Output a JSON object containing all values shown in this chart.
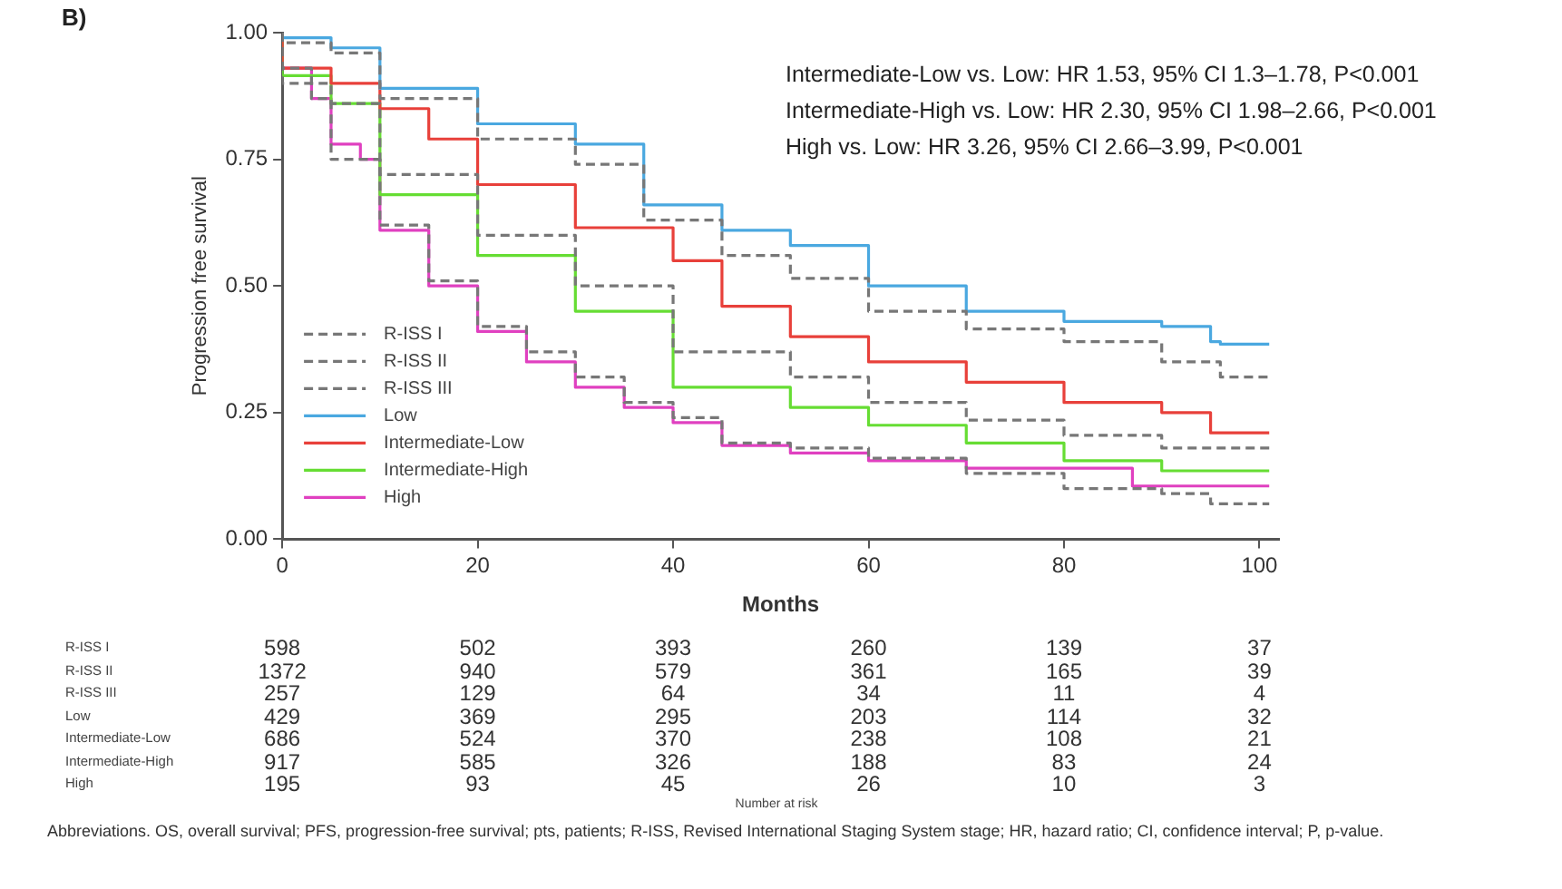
{
  "chart_data": {
    "type": "step",
    "ylabel": "Progression free survival",
    "xlabel": "Months",
    "xlim": [
      0,
      102
    ],
    "ylim": [
      0,
      1
    ],
    "xticks": [
      0,
      20,
      40,
      60,
      80,
      100
    ],
    "yticks": [
      {
        "value": 0,
        "label": "0.00"
      },
      {
        "value": 0.25,
        "label": "0.25"
      },
      {
        "value": 0.5,
        "label": "0.50"
      },
      {
        "value": 0.75,
        "label": "0.75"
      },
      {
        "value": 1,
        "label": "1.00"
      }
    ],
    "grid": false,
    "legend": "bottom left",
    "marker": "none",
    "series": [
      {
        "name": "R-ISS I",
        "color": "#777777",
        "line_style": "dashed",
        "x": [
          0,
          5,
          10,
          20,
          30,
          37,
          45,
          52,
          60,
          70,
          80,
          90,
          96,
          101
        ],
        "values": [
          1,
          0.98,
          0.96,
          0.87,
          0.79,
          0.74,
          0.63,
          0.56,
          0.515,
          0.45,
          0.415,
          0.39,
          0.35,
          0.32
        ]
      },
      {
        "name": "R-ISS II",
        "color": "#777777",
        "line_style": "dashed",
        "x": [
          0,
          5,
          10,
          20,
          30,
          40,
          52,
          60,
          70,
          80,
          90,
          101
        ],
        "values": [
          1,
          0.9,
          0.86,
          0.72,
          0.6,
          0.5,
          0.37,
          0.32,
          0.27,
          0.235,
          0.205,
          0.18
        ]
      },
      {
        "name": "R-ISS III",
        "color": "#777777",
        "line_style": "dashed",
        "x": [
          0,
          3,
          5,
          10,
          15,
          20,
          25,
          30,
          35,
          40,
          45,
          52,
          60,
          70,
          80,
          90,
          95,
          101
        ],
        "values": [
          1,
          0.93,
          0.87,
          0.75,
          0.62,
          0.51,
          0.42,
          0.37,
          0.32,
          0.27,
          0.24,
          0.19,
          0.18,
          0.16,
          0.13,
          0.1,
          0.09,
          0.07
        ]
      },
      {
        "name": "Low",
        "color": "#4aa8e0",
        "line_style": "solid",
        "x": [
          0,
          5,
          10,
          20,
          30,
          37,
          45,
          52,
          60,
          70,
          80,
          90,
          95,
          96,
          101
        ],
        "values": [
          1,
          0.99,
          0.97,
          0.89,
          0.82,
          0.78,
          0.66,
          0.61,
          0.58,
          0.5,
          0.45,
          0.43,
          0.42,
          0.39,
          0.385
        ]
      },
      {
        "name": "Intermediate-Low",
        "color": "#e8403a",
        "line_style": "solid",
        "x": [
          0,
          5,
          10,
          15,
          20,
          30,
          40,
          45,
          52,
          60,
          70,
          80,
          90,
          95,
          98,
          101
        ],
        "values": [
          1,
          0.93,
          0.9,
          0.85,
          0.79,
          0.7,
          0.615,
          0.55,
          0.46,
          0.4,
          0.35,
          0.31,
          0.27,
          0.25,
          0.21,
          0.21
        ]
      },
      {
        "name": "Intermediate-High",
        "color": "#66dd33",
        "line_style": "solid",
        "x": [
          0,
          5,
          10,
          20,
          30,
          40,
          52,
          60,
          70,
          80,
          90,
          101
        ],
        "values": [
          1,
          0.915,
          0.86,
          0.68,
          0.56,
          0.45,
          0.3,
          0.26,
          0.225,
          0.19,
          0.155,
          0.135
        ]
      },
      {
        "name": "High",
        "color": "#e040c0",
        "line_style": "solid",
        "x": [
          0,
          3,
          5,
          8,
          10,
          15,
          20,
          25,
          30,
          35,
          40,
          45,
          52,
          60,
          70,
          80,
          87,
          88,
          101
        ],
        "values": [
          1,
          0.93,
          0.87,
          0.78,
          0.75,
          0.61,
          0.5,
          0.41,
          0.35,
          0.3,
          0.26,
          0.23,
          0.185,
          0.17,
          0.155,
          0.14,
          0.14,
          0.105,
          0.105
        ]
      }
    ],
    "annotations": [
      "B)",
      "Intermediate-Low vs. Low: HR 1.53, 95% CI 1.3–1.78, P<0.001",
      "Intermediate-High vs. Low: HR 2.30, 95% CI 1.98–2.66, P<0.001",
      "High vs. Low: HR 3.26, 95% CI 2.66–3.99, P<0.001",
      "Number at risk",
      "Abbreviations. OS, overall survival; PFS, progression-free survival; pts, patients; R-ISS, Revised International Staging System stage; HR, hazard ratio; CI, confidence interval; P, p-value.",
      "R-ISS I",
      "598",
      "502",
      "393",
      "260",
      "139",
      "37",
      "R-ISS II",
      "1372",
      "940",
      "579",
      "361",
      "165",
      "39",
      "R-ISS III",
      "257",
      "129",
      "64",
      "34",
      "11",
      "4",
      "Low",
      "429",
      "369",
      "295",
      "203",
      "114",
      "32",
      "Intermediate-Low",
      "686",
      "524",
      "370",
      "238",
      "108",
      "21",
      "Intermediate-High",
      "917",
      "585",
      "326",
      "188",
      "83",
      "24",
      "High",
      "195",
      "93",
      "45",
      "26",
      "10",
      "3"
    ]
  }
}
